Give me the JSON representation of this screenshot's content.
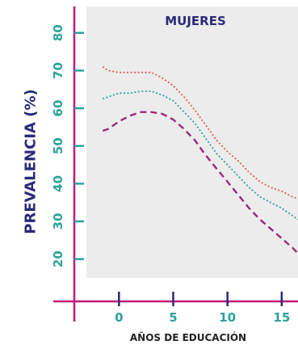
{
  "chart_data": {
    "type": "line",
    "title": "MUJERES",
    "xlabel": "AÑOS DE EDUCACIÓN",
    "ylabel": "PREVALENCIA (%)",
    "xlim": [
      -3,
      16.5
    ],
    "ylim": [
      15,
      87
    ],
    "x_ticks": [
      0,
      5,
      10,
      15
    ],
    "y_ticks": [
      20,
      30,
      40,
      50,
      60,
      70,
      80
    ],
    "grid": false,
    "colors": {
      "panel": "#ececec",
      "axis": "#c2187a",
      "tick_label": "#2aa39a",
      "title": "#2a2a7a"
    },
    "series": [
      {
        "color": "#e05a5a",
        "style": "dotted",
        "x": [
          -1.5,
          -1,
          0,
          1,
          2,
          3,
          4,
          5,
          6,
          7,
          8,
          9,
          10,
          11,
          12,
          13,
          14,
          15,
          16,
          16.5
        ],
        "y": [
          71,
          70,
          69.5,
          69.5,
          69.5,
          69.5,
          68,
          66,
          63,
          59.5,
          55.5,
          51.5,
          48.5,
          46,
          43,
          40.5,
          39,
          38,
          36.5,
          36
        ]
      },
      {
        "color": "#2aa39a",
        "style": "dotted",
        "x": [
          -1.5,
          -1,
          0,
          1,
          2,
          3,
          4,
          5,
          6,
          7,
          8,
          9,
          10,
          11,
          12,
          13,
          14,
          15,
          16,
          16.5
        ],
        "y": [
          62.5,
          63,
          64,
          64,
          64.5,
          64.5,
          63.5,
          62,
          59,
          56,
          52,
          48,
          45,
          42,
          39,
          36.5,
          35,
          33.5,
          31.5,
          30.5
        ]
      },
      {
        "color": "#9a2a7a",
        "style": "dashed",
        "x": [
          -1.5,
          -1,
          0,
          1,
          2,
          3,
          4,
          5,
          6,
          7,
          8,
          9,
          10,
          11,
          12,
          13,
          14,
          15,
          16,
          16.5
        ],
        "y": [
          54,
          54.5,
          56.5,
          58,
          59,
          59,
          58.5,
          57,
          54.5,
          51.5,
          47.5,
          44,
          40.5,
          37,
          33.5,
          30.5,
          28,
          25.5,
          23,
          21.5
        ]
      }
    ]
  }
}
